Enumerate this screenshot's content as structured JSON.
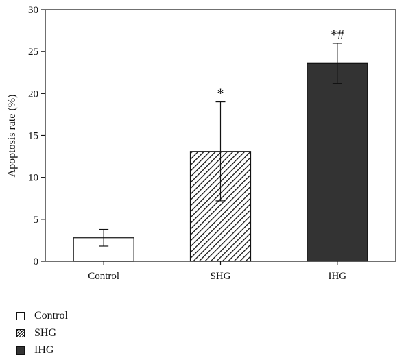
{
  "chart_data": {
    "type": "bar",
    "categories": [
      "Control",
      "SHG",
      "IHG"
    ],
    "values": [
      2.8,
      13.1,
      23.6
    ],
    "errors": [
      1.0,
      5.9,
      2.4
    ],
    "annotations": [
      "",
      "*",
      "*#"
    ],
    "ylabel": "Apoptosis rate (%)",
    "ylim": [
      0,
      30
    ],
    "yticks": [
      0,
      5,
      10,
      15,
      20,
      25,
      30
    ],
    "grid": false,
    "legend_placement": "bottom-left",
    "series_styles": [
      {
        "fill": "#ffffff",
        "pattern": "none"
      },
      {
        "fill": "#ffffff",
        "pattern": "diagonal-hatch"
      },
      {
        "fill": "#333333",
        "pattern": "none"
      }
    ]
  },
  "legend": {
    "items": [
      {
        "label": "Control",
        "swatch": "white"
      },
      {
        "label": "SHG",
        "swatch": "hatch"
      },
      {
        "label": "IHG",
        "swatch": "dark"
      }
    ]
  }
}
